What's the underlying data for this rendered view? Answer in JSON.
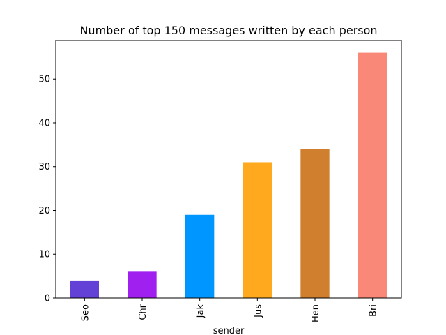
{
  "chart_data": {
    "type": "bar",
    "title": "Number of top 150 messages written by each person",
    "xlabel": "sender",
    "ylabel": "",
    "categories": [
      "Seo",
      "Chr",
      "Jak",
      "Jus",
      "Hen",
      "Bri"
    ],
    "values": [
      4,
      6,
      19,
      31,
      34,
      56
    ],
    "colors": [
      "#6441d6",
      "#a020f0",
      "#0096ff",
      "#ffaa1e",
      "#d07f2f",
      "#fa8878"
    ],
    "ylim": [
      0,
      58.8
    ],
    "yticks": [
      0,
      10,
      20,
      30,
      40,
      50
    ],
    "grid": false
  }
}
